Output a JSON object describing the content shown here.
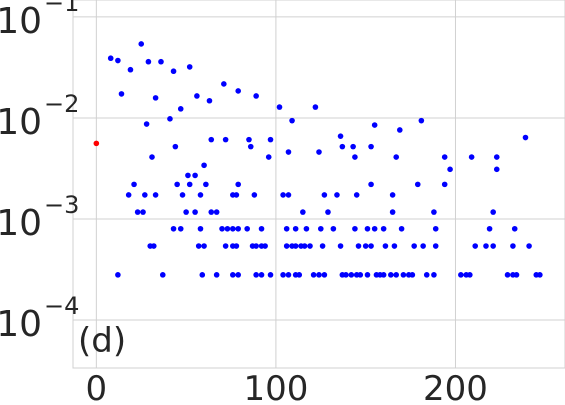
{
  "chart_data": {
    "type": "scatter",
    "annotation": "(d)",
    "log_y": true,
    "grid": true,
    "xlim": [
      -13,
      261
    ],
    "ylim": [
      3.35e-05,
      0.147
    ],
    "xticks": [
      0,
      100,
      200
    ],
    "yticks": [
      {
        "value": 0.1,
        "label": "10",
        "sup": "−1"
      },
      {
        "value": 0.01,
        "label": "10",
        "sup": "−2"
      },
      {
        "value": 0.001,
        "label": "10",
        "sup": "−3"
      },
      {
        "value": 0.0001,
        "label": "10",
        "sup": "−4"
      }
    ],
    "series": [
      {
        "color": "#0000ff",
        "x": [
          12,
          37,
          59,
          67,
          76,
          79,
          89,
          92,
          97,
          104,
          107,
          111,
          113,
          121,
          124,
          127,
          137,
          139,
          142,
          145,
          147,
          151,
          156,
          158,
          160,
          164,
          167,
          171,
          174,
          176,
          184,
          188,
          203,
          206,
          208,
          229,
          232,
          234,
          245,
          247,
          30,
          32,
          57,
          60,
          72,
          76,
          78,
          87,
          89,
          92,
          94,
          106,
          109,
          111,
          114,
          116,
          119,
          126,
          136,
          146,
          150,
          153,
          161,
          166,
          177,
          182,
          189,
          211,
          217,
          221,
          232,
          241,
          43,
          47,
          58,
          70,
          73,
          76,
          79,
          84,
          92,
          106,
          111,
          117,
          125,
          132,
          144,
          151,
          155,
          160,
          170,
          189,
          219,
          233,
          23,
          26,
          50,
          55,
          64,
          67,
          115,
          129,
          165,
          188,
          221,
          18,
          27,
          33,
          48,
          58,
          76,
          78,
          88,
          104,
          107,
          127,
          134,
          145,
          165,
          21,
          45,
          52,
          61,
          79,
          153,
          179,
          194,
          51,
          55,
          197,
          223,
          60,
          31,
          96,
          144,
          167,
          194,
          209,
          223,
          107,
          124,
          44,
          86,
          137,
          153,
          64,
          85,
          97,
          72,
          8,
          12,
          14,
          19,
          25,
          29,
          28,
          33,
          36,
          41,
          43,
          47,
          52,
          56,
          63,
          71,
          79,
          89,
          102,
          109,
          122,
          136,
          143,
          155,
          169,
          181,
          239
        ],
        "values": [
          0.00028,
          0.00028,
          0.00028,
          0.00028,
          0.00028,
          0.00028,
          0.00028,
          0.00028,
          0.00028,
          0.00028,
          0.00028,
          0.00028,
          0.00028,
          0.00028,
          0.00028,
          0.00028,
          0.00028,
          0.00028,
          0.00028,
          0.00028,
          0.00028,
          0.00028,
          0.00028,
          0.00028,
          0.00028,
          0.00028,
          0.00028,
          0.00028,
          0.00028,
          0.00028,
          0.00028,
          0.00028,
          0.00028,
          0.00028,
          0.00028,
          0.00028,
          0.00028,
          0.00028,
          0.00028,
          0.00028,
          0.00054,
          0.00054,
          0.00054,
          0.00054,
          0.00054,
          0.00054,
          0.00054,
          0.00054,
          0.00054,
          0.00054,
          0.00054,
          0.00054,
          0.00054,
          0.00054,
          0.00054,
          0.00054,
          0.00054,
          0.00054,
          0.00054,
          0.00054,
          0.00054,
          0.00054,
          0.00054,
          0.00054,
          0.00054,
          0.00054,
          0.00054,
          0.00054,
          0.00054,
          0.00054,
          0.00054,
          0.00054,
          0.0008,
          0.0008,
          0.0008,
          0.0008,
          0.0008,
          0.0008,
          0.0008,
          0.0008,
          0.0008,
          0.0008,
          0.0008,
          0.0008,
          0.0008,
          0.0008,
          0.0008,
          0.0008,
          0.0008,
          0.0008,
          0.0008,
          0.0008,
          0.0008,
          0.0008,
          0.00117,
          0.00117,
          0.00117,
          0.00117,
          0.00117,
          0.00117,
          0.00117,
          0.00117,
          0.00117,
          0.00117,
          0.00117,
          0.00173,
          0.00173,
          0.00173,
          0.00173,
          0.00173,
          0.00173,
          0.00173,
          0.00173,
          0.00173,
          0.00173,
          0.00173,
          0.00173,
          0.00173,
          0.00173,
          0.0022,
          0.0022,
          0.0022,
          0.0022,
          0.0022,
          0.0022,
          0.0022,
          0.0022,
          0.0027,
          0.0027,
          0.0031,
          0.0031,
          0.0034,
          0.0041,
          0.0041,
          0.0041,
          0.0041,
          0.0041,
          0.0041,
          0.0041,
          0.0046,
          0.0046,
          0.0052,
          0.0052,
          0.0052,
          0.0052,
          0.0061,
          0.0061,
          0.0061,
          0.0061,
          0.039,
          0.037,
          0.0173,
          0.03,
          0.054,
          0.036,
          0.0087,
          0.0158,
          0.036,
          0.0098,
          0.029,
          0.0123,
          0.032,
          0.0165,
          0.0148,
          0.0217,
          0.0185,
          0.0165,
          0.0128,
          0.0094,
          0.0128,
          0.0066,
          0.0052,
          0.0085,
          0.0076,
          0.0094,
          0.0064
        ]
      },
      {
        "color": "#ff0000",
        "x": [
          0
        ],
        "values": [
          0.0056
        ]
      }
    ]
  }
}
